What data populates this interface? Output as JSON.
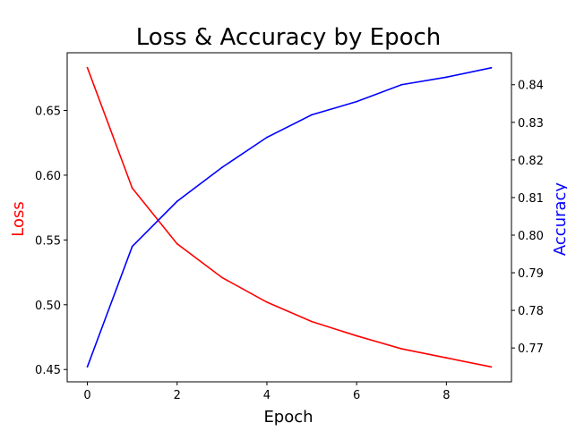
{
  "chart_data": {
    "type": "line",
    "title": "Loss & Accuracy by Epoch",
    "xlabel": "Epoch",
    "ylabel_left": "Loss",
    "ylabel_right": "Accuracy",
    "x": [
      0,
      1,
      2,
      3,
      4,
      5,
      6,
      7,
      8,
      9
    ],
    "xlim": [
      -0.45,
      9.45
    ],
    "xticks": [
      "0",
      "2",
      "4",
      "6",
      "8"
    ],
    "grid": false,
    "series": [
      {
        "axis": "left",
        "color": "#ff0000",
        "values": [
          0.683,
          0.59,
          0.547,
          0.521,
          0.502,
          0.487,
          0.476,
          0.466,
          0.459,
          0.452
        ],
        "ylim": [
          0.4405,
          0.6945
        ],
        "yticks": [
          "0.45",
          "0.50",
          "0.55",
          "0.60",
          "0.65"
        ]
      },
      {
        "axis": "right",
        "color": "#0000ff",
        "values": [
          0.765,
          0.797,
          0.809,
          0.818,
          0.826,
          0.832,
          0.8355,
          0.84,
          0.842,
          0.8445
        ],
        "ylim": [
          0.761,
          0.8485
        ],
        "yticks": [
          "0.77",
          "0.78",
          "0.79",
          "0.80",
          "0.81",
          "0.82",
          "0.83",
          "0.84"
        ]
      }
    ]
  }
}
